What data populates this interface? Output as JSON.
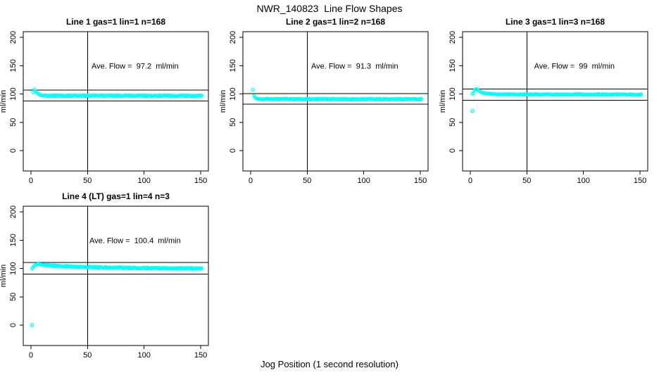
{
  "page": {
    "title": "NWR_140823  Line Flow Shapes",
    "xlabel": "Jog Position (1 second resolution)"
  },
  "colors": {
    "marker": "#00FFFF",
    "axis": "#000000",
    "background": "#FFFFFF"
  },
  "chart_data": [
    {
      "type": "scatter",
      "title": "Line 1 gas=1 lin=1 n=168",
      "annotation": "Ave. Flow =  97.2  ml/min",
      "ave_flow_ml_min": 97.2,
      "n": 168,
      "gas": 1,
      "lin": 1,
      "ylabel": "ml/min",
      "xticks": [
        0,
        50,
        100,
        150
      ],
      "yticks": [
        0,
        50,
        100,
        150,
        200
      ],
      "xlim": [
        -6.8,
        156.8
      ],
      "ylim": [
        -36,
        210
      ],
      "vline_x": 50,
      "hlines": [
        106.9,
        87.5
      ],
      "annotation_at": [
        92,
        150
      ],
      "keypoints": [
        [
          2,
          103
        ],
        [
          3,
          108
        ],
        [
          4,
          105.5
        ],
        [
          5,
          103
        ],
        [
          6,
          101
        ],
        [
          7,
          99.4
        ],
        [
          8,
          98.3
        ],
        [
          9,
          97.6
        ],
        [
          10,
          97.2
        ],
        [
          12,
          97.0
        ],
        [
          151,
          96.8
        ]
      ],
      "outliers": [],
      "tail_from": 12,
      "tail_jitter": 0.8
    },
    {
      "type": "scatter",
      "title": "Line 2 gas=1 lin=2 n=168",
      "annotation": "Ave. Flow =  91.3  ml/min",
      "ave_flow_ml_min": 91.3,
      "n": 168,
      "gas": 1,
      "lin": 2,
      "ylabel": "ml/min",
      "xticks": [
        0,
        50,
        100,
        150
      ],
      "yticks": [
        0,
        50,
        100,
        150,
        200
      ],
      "xlim": [
        -6.8,
        156.8
      ],
      "ylim": [
        -36,
        210
      ],
      "vline_x": 50,
      "hlines": [
        100.4,
        82.2
      ],
      "annotation_at": [
        92,
        150
      ],
      "keypoints": [
        [
          2,
          107.5
        ],
        [
          3,
          97
        ],
        [
          4,
          93.5
        ],
        [
          5,
          92.2
        ],
        [
          6,
          91.6
        ],
        [
          8,
          91.2
        ],
        [
          10,
          91.0
        ],
        [
          151,
          90.8
        ]
      ],
      "outliers": [],
      "tail_from": 10,
      "tail_jitter": 0.8
    },
    {
      "type": "scatter",
      "title": "Line 3 gas=1 lin=3 n=168",
      "annotation": "Ave. Flow =  99  ml/min",
      "ave_flow_ml_min": 99,
      "n": 168,
      "gas": 1,
      "lin": 3,
      "ylabel": "ml/min",
      "xticks": [
        0,
        50,
        100,
        150
      ],
      "yticks": [
        0,
        50,
        100,
        150,
        200
      ],
      "xlim": [
        -6.8,
        156.8
      ],
      "ylim": [
        -36,
        210
      ],
      "vline_x": 50,
      "hlines": [
        108.9,
        89.1
      ],
      "annotation_at": [
        92,
        150
      ],
      "keypoints": [
        [
          2,
          100.5
        ],
        [
          3,
          102
        ],
        [
          4,
          106.5
        ],
        [
          5,
          108.5
        ],
        [
          6,
          108
        ],
        [
          7,
          106.5
        ],
        [
          8,
          105
        ],
        [
          10,
          103
        ],
        [
          12,
          101.8
        ],
        [
          15,
          100.8
        ],
        [
          20,
          99.8
        ],
        [
          25,
          99.3
        ],
        [
          151,
          99.0
        ]
      ],
      "outliers": [
        [
          2,
          70
        ]
      ],
      "tail_from": 25,
      "tail_jitter": 0.7
    },
    {
      "type": "scatter",
      "title": "Line 4 (LT) gas=1 lin=4 n=3",
      "annotation": "Ave. Flow =  100.4  ml/min",
      "ave_flow_ml_min": 100.4,
      "n": 3,
      "gas": 1,
      "lin": 4,
      "ylabel": "ml/min",
      "xticks": [
        0,
        50,
        100,
        150
      ],
      "yticks": [
        0,
        50,
        100,
        150,
        200
      ],
      "xlim": [
        -6.8,
        156.8
      ],
      "ylim": [
        -36,
        210
      ],
      "vline_x": 50,
      "hlines": [
        110.4,
        90.4
      ],
      "annotation_at": [
        92,
        150
      ],
      "keypoints": [
        [
          1,
          99.5
        ],
        [
          2,
          102.5
        ],
        [
          3,
          104.5
        ],
        [
          4,
          106
        ],
        [
          5,
          107.2
        ],
        [
          6,
          107.3
        ],
        [
          8,
          107
        ],
        [
          10,
          106.5
        ],
        [
          15,
          105.5
        ],
        [
          20,
          104.8
        ],
        [
          30,
          103.8
        ],
        [
          40,
          103.2
        ],
        [
          50,
          102.6
        ],
        [
          60,
          102
        ],
        [
          80,
          101.3
        ],
        [
          100,
          100.8
        ],
        [
          120,
          100.3
        ],
        [
          140,
          100
        ],
        [
          151,
          99.8
        ]
      ],
      "outliers": [
        [
          1,
          0
        ]
      ],
      "tail_from": 6,
      "tail_jitter": 1.0
    }
  ]
}
